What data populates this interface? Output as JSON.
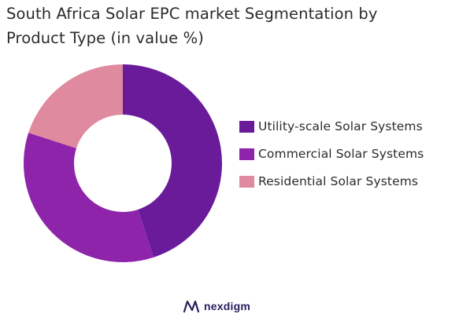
{
  "title_lines": [
    "South Africa Solar EPC market Segmentation by",
    "Product Type (in value %)"
  ],
  "chart_data": {
    "type": "pie",
    "donut": true,
    "title": "South Africa Solar EPC market Segmentation by Product Type (in value %)",
    "categories": [
      "Utility-scale Solar Systems",
      "Commercial Solar Systems",
      "Residential Solar Systems"
    ],
    "values": [
      45,
      35,
      20
    ],
    "colors": [
      "#6a1b9a",
      "#8e24aa",
      "#e08a9f"
    ],
    "legend_position": "right"
  },
  "logo": {
    "text": "nexdigm",
    "icon": "nexdigm-logo-mark",
    "color": "#2a1f5f"
  }
}
